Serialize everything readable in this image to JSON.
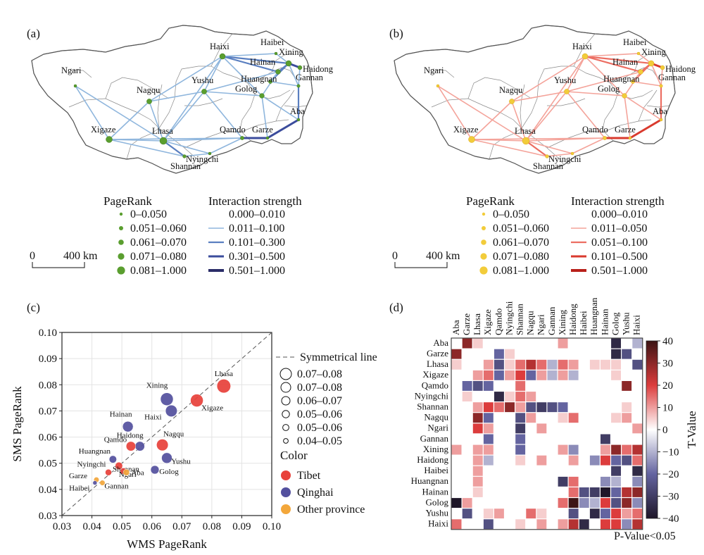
{
  "panels": {
    "a": "(a)",
    "b": "(b)",
    "c": "(c)",
    "d": "(d)"
  },
  "cities": [
    {
      "name": "Ngari",
      "province": "Tibet"
    },
    {
      "name": "Nagqu",
      "province": "Tibet"
    },
    {
      "name": "Xigaze",
      "province": "Tibet"
    },
    {
      "name": "Lhasa",
      "province": "Tibet"
    },
    {
      "name": "Shannan",
      "province": "Tibet"
    },
    {
      "name": "Nyingchi",
      "province": "Tibet"
    },
    {
      "name": "Qamdo",
      "province": "Tibet"
    },
    {
      "name": "Yushu",
      "province": "Qinghai"
    },
    {
      "name": "Haixi",
      "province": "Qinghai"
    },
    {
      "name": "Haibei",
      "province": "Qinghai"
    },
    {
      "name": "Xining",
      "province": "Qinghai"
    },
    {
      "name": "Haidong",
      "province": "Qinghai"
    },
    {
      "name": "Hainan",
      "province": "Qinghai"
    },
    {
      "name": "Huangnan",
      "province": "Qinghai"
    },
    {
      "name": "Golog",
      "province": "Qinghai"
    },
    {
      "name": "Gannan",
      "province": "Other province"
    },
    {
      "name": "Garze",
      "province": "Other province"
    },
    {
      "name": "Aba",
      "province": "Other province"
    }
  ],
  "map_a": {
    "legend_pr_title": "PageRank",
    "legend_pr": [
      "0–0.050",
      "0.051–0.060",
      "0.061–0.070",
      "0.071–0.080",
      "0.081–1.000"
    ],
    "legend_is_title": "Interaction strength",
    "legend_is": [
      "0.000–0.010",
      "0.011–0.100",
      "0.101–0.300",
      "0.301–0.500",
      "0.501–1.000"
    ],
    "scale_zero": "0",
    "scale_label": "400 km",
    "node_color": "#5a9e2f",
    "edge_colors": [
      "#8fb6dd",
      "#5a7fc0",
      "#3b4c9c",
      "#2b2d68"
    ]
  },
  "map_b": {
    "legend_pr_title": "PageRank",
    "legend_pr": [
      "0–0.050",
      "0.051–0.060",
      "0.061–0.070",
      "0.071–0.080",
      "0.081–1.000"
    ],
    "legend_is_title": "Interaction strength",
    "legend_is": [
      "0.000–0.010",
      "0.011–0.050",
      "0.051–0.100",
      "0.101–0.500",
      "0.501–1.000"
    ],
    "scale_zero": "0",
    "scale_label": "400 km",
    "node_color": "#f2cc3a",
    "edge_colors": [
      "#f4a39a",
      "#ec6e62",
      "#d93a2e",
      "#b8201a"
    ]
  },
  "chart_data": [
    {
      "type": "scatter",
      "xlabel": "WMS PageRank",
      "ylabel": "SMS PageRank",
      "xlim": [
        0.03,
        0.1
      ],
      "ylim": [
        0.03,
        0.1
      ],
      "xticks": [
        "0.03",
        "0.04",
        "0.05",
        "0.06",
        "0.07",
        "0.08",
        "0.09",
        "0.10"
      ],
      "yticks": [
        "0.03",
        "0.04",
        "0.05",
        "0.06",
        "0.07",
        "0.08",
        "0.09",
        "0.10"
      ],
      "grid": true,
      "diagonal_label": "Symmetrical line",
      "size_legend": [
        "0.07–0.08",
        "0.07–0.08",
        "0.06–0.07",
        "0.05–0.06",
        "0.05–0.06",
        "0.04–0.05"
      ],
      "color_legend_title": "Color",
      "color_legend": [
        {
          "label": "Tibet",
          "color": "#e8413a"
        },
        {
          "label": "Qinghai",
          "color": "#53509e"
        },
        {
          "label": "Other province",
          "color": "#f3a73b"
        }
      ],
      "points": [
        {
          "name": "Lhasa",
          "x": 0.084,
          "y": 0.0795,
          "group": "Tibet",
          "size": 13
        },
        {
          "name": "Xigaze",
          "x": 0.075,
          "y": 0.074,
          "group": "Tibet",
          "size": 12
        },
        {
          "name": "Xining",
          "x": 0.065,
          "y": 0.0745,
          "group": "Qinghai",
          "size": 12
        },
        {
          "name": "Haixi",
          "x": 0.0665,
          "y": 0.07,
          "group": "Qinghai",
          "size": 11
        },
        {
          "name": "Hainan",
          "x": 0.052,
          "y": 0.064,
          "group": "Qinghai",
          "size": 10
        },
        {
          "name": "Nagqu",
          "x": 0.0635,
          "y": 0.057,
          "group": "Tibet",
          "size": 11
        },
        {
          "name": "Haidong",
          "x": 0.056,
          "y": 0.0565,
          "group": "Qinghai",
          "size": 9
        },
        {
          "name": "Qamdo",
          "x": 0.053,
          "y": 0.0565,
          "group": "Tibet",
          "size": 9
        },
        {
          "name": "Yushu",
          "x": 0.065,
          "y": 0.052,
          "group": "Qinghai",
          "size": 10
        },
        {
          "name": "Golog",
          "x": 0.061,
          "y": 0.0475,
          "group": "Qinghai",
          "size": 8
        },
        {
          "name": "Huangnan",
          "x": 0.047,
          "y": 0.0515,
          "group": "Qinghai",
          "size": 7
        },
        {
          "name": "Shannan",
          "x": 0.049,
          "y": 0.049,
          "group": "Tibet",
          "size": 7
        },
        {
          "name": "Nyingchi",
          "x": 0.0455,
          "y": 0.0465,
          "group": "Tibet",
          "size": 6
        },
        {
          "name": "Ngari",
          "x": 0.0505,
          "y": 0.047,
          "group": "Tibet",
          "size": 6
        },
        {
          "name": "Aba",
          "x": 0.0515,
          "y": 0.0465,
          "group": "Other province",
          "size": 6
        },
        {
          "name": "Garze",
          "x": 0.0415,
          "y": 0.0437,
          "group": "Other province",
          "size": 5
        },
        {
          "name": "Haibei",
          "x": 0.041,
          "y": 0.0425,
          "group": "Qinghai",
          "size": 4
        },
        {
          "name": "Gannan",
          "x": 0.0435,
          "y": 0.0425,
          "group": "Other province",
          "size": 5
        }
      ]
    },
    {
      "type": "heatmap",
      "labels": [
        "Aba",
        "Garze",
        "Lhasa",
        "Xigaze",
        "Qamdo",
        "Nyingchi",
        "Shannan",
        "Nagqu",
        "Ngari",
        "Gannan",
        "Xining",
        "Haidong",
        "Haibei",
        "Huangnan",
        "Hainan",
        "Golog",
        "Yushu",
        "Haixi"
      ],
      "colorbar_label": "T-Value",
      "colorbar_ticks": [
        "40",
        "30",
        "20",
        "10",
        "0",
        "−10",
        "−20",
        "−30",
        "−40"
      ],
      "vmin": -40,
      "vmax": 40,
      "note": "P-Value<0.05",
      "cells": [
        [
          0,
          1,
          30
        ],
        [
          0,
          2,
          5
        ],
        [
          0,
          10,
          10
        ],
        [
          0,
          15,
          -35
        ],
        [
          0,
          17,
          -10
        ],
        [
          1,
          0,
          30
        ],
        [
          1,
          4,
          -20
        ],
        [
          1,
          5,
          5
        ],
        [
          1,
          15,
          -35
        ],
        [
          1,
          16,
          -25
        ],
        [
          2,
          0,
          5
        ],
        [
          2,
          3,
          10
        ],
        [
          2,
          4,
          -25
        ],
        [
          2,
          5,
          5
        ],
        [
          2,
          6,
          15
        ],
        [
          2,
          7,
          25
        ],
        [
          2,
          8,
          15
        ],
        [
          2,
          9,
          -10
        ],
        [
          2,
          10,
          15
        ],
        [
          2,
          11,
          10
        ],
        [
          2,
          13,
          5
        ],
        [
          2,
          14,
          5
        ],
        [
          2,
          15,
          5
        ],
        [
          2,
          17,
          -25
        ],
        [
          3,
          2,
          10
        ],
        [
          3,
          3,
          15
        ],
        [
          3,
          4,
          -20
        ],
        [
          3,
          5,
          10
        ],
        [
          3,
          6,
          20
        ],
        [
          3,
          7,
          -20
        ],
        [
          3,
          8,
          10
        ],
        [
          3,
          9,
          -10
        ],
        [
          3,
          10,
          10
        ],
        [
          3,
          11,
          -10
        ],
        [
          3,
          15,
          5
        ],
        [
          4,
          1,
          -20
        ],
        [
          4,
          2,
          -25
        ],
        [
          4,
          3,
          -20
        ],
        [
          4,
          6,
          15
        ],
        [
          4,
          16,
          30
        ],
        [
          5,
          1,
          5
        ],
        [
          5,
          4,
          -35
        ],
        [
          5,
          5,
          5
        ],
        [
          5,
          6,
          15
        ],
        [
          5,
          7,
          10
        ],
        [
          6,
          2,
          10
        ],
        [
          6,
          3,
          20
        ],
        [
          6,
          4,
          15
        ],
        [
          6,
          5,
          30
        ],
        [
          6,
          6,
          10
        ],
        [
          6,
          7,
          -25
        ],
        [
          6,
          8,
          -30
        ],
        [
          6,
          9,
          -25
        ],
        [
          6,
          10,
          -20
        ],
        [
          6,
          16,
          5
        ],
        [
          7,
          2,
          30
        ],
        [
          7,
          3,
          -20
        ],
        [
          7,
          6,
          -25
        ],
        [
          7,
          7,
          10
        ],
        [
          7,
          10,
          5
        ],
        [
          7,
          11,
          15
        ],
        [
          7,
          15,
          5
        ],
        [
          7,
          16,
          10
        ],
        [
          8,
          2,
          20
        ],
        [
          8,
          3,
          10
        ],
        [
          8,
          6,
          -30
        ],
        [
          8,
          8,
          10
        ],
        [
          8,
          17,
          10
        ],
        [
          9,
          3,
          -20
        ],
        [
          9,
          6,
          -20
        ],
        [
          9,
          14,
          -30
        ],
        [
          10,
          0,
          10
        ],
        [
          10,
          2,
          10
        ],
        [
          10,
          3,
          10
        ],
        [
          10,
          6,
          -20
        ],
        [
          10,
          10,
          10
        ],
        [
          10,
          11,
          -15
        ],
        [
          10,
          14,
          10
        ],
        [
          10,
          15,
          30
        ],
        [
          10,
          16,
          15
        ],
        [
          10,
          17,
          25
        ],
        [
          11,
          2,
          10
        ],
        [
          11,
          3,
          -10
        ],
        [
          11,
          6,
          5
        ],
        [
          11,
          8,
          10
        ],
        [
          11,
          11,
          10
        ],
        [
          11,
          13,
          -15
        ],
        [
          11,
          14,
          20
        ],
        [
          11,
          15,
          -20
        ],
        [
          11,
          16,
          -25
        ],
        [
          11,
          17,
          15
        ],
        [
          12,
          2,
          10
        ],
        [
          12,
          15,
          -30
        ],
        [
          12,
          17,
          -35
        ],
        [
          13,
          2,
          10
        ],
        [
          13,
          10,
          -30
        ],
        [
          13,
          11,
          15
        ],
        [
          13,
          14,
          -15
        ],
        [
          13,
          15,
          -10
        ],
        [
          13,
          17,
          -15
        ],
        [
          14,
          2,
          5
        ],
        [
          14,
          11,
          15
        ],
        [
          14,
          12,
          -25
        ],
        [
          14,
          13,
          -30
        ],
        [
          14,
          14,
          -40
        ],
        [
          14,
          15,
          -20
        ],
        [
          14,
          16,
          25
        ],
        [
          14,
          17,
          30
        ],
        [
          15,
          0,
          -40
        ],
        [
          15,
          1,
          10
        ],
        [
          15,
          10,
          15
        ],
        [
          15,
          11,
          40
        ],
        [
          15,
          12,
          -15
        ],
        [
          15,
          13,
          -10
        ],
        [
          15,
          14,
          20
        ],
        [
          15,
          15,
          -25
        ],
        [
          15,
          16,
          30
        ],
        [
          15,
          17,
          -15
        ],
        [
          16,
          1,
          -25
        ],
        [
          16,
          3,
          5
        ],
        [
          16,
          4,
          10
        ],
        [
          16,
          7,
          15
        ],
        [
          16,
          8,
          5
        ],
        [
          16,
          11,
          -25
        ],
        [
          16,
          13,
          -35
        ],
        [
          16,
          14,
          -20
        ],
        [
          16,
          15,
          20
        ],
        [
          16,
          16,
          10
        ],
        [
          16,
          17,
          15
        ],
        [
          17,
          0,
          15
        ],
        [
          17,
          3,
          -25
        ],
        [
          17,
          6,
          5
        ],
        [
          17,
          8,
          10
        ],
        [
          17,
          10,
          10
        ],
        [
          17,
          11,
          25
        ],
        [
          17,
          12,
          -35
        ],
        [
          17,
          14,
          20
        ],
        [
          17,
          15,
          20
        ],
        [
          17,
          16,
          -15
        ],
        [
          17,
          17,
          25
        ]
      ]
    }
  ]
}
